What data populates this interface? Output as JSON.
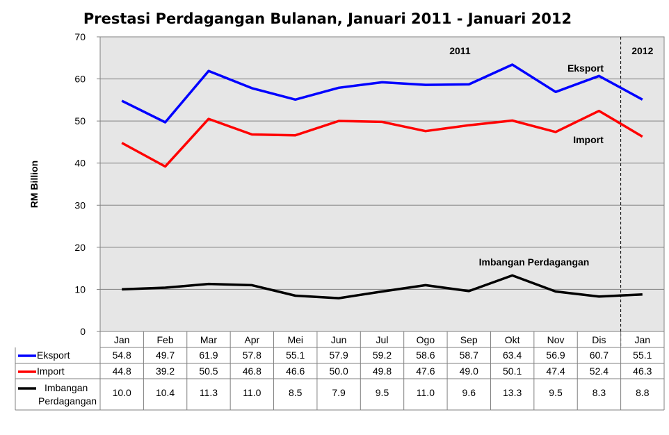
{
  "chart_data": {
    "type": "line",
    "title": "Prestasi Perdagangan Bulanan, Januari 2011 - Januari 2012",
    "ylabel": "RM Billion",
    "xlabel": "",
    "ylim": [
      0,
      70
    ],
    "yticks": [
      0,
      10,
      20,
      30,
      40,
      50,
      60,
      70
    ],
    "grid": true,
    "categories": [
      "Jan",
      "Feb",
      "Mar",
      "Apr",
      "Mei",
      "Jun",
      "Jul",
      "Ogo",
      "Sep",
      "Okt",
      "Nov",
      "Dis",
      "Jan"
    ],
    "period_labels": [
      "2011",
      "2012"
    ],
    "series": [
      {
        "key": "eksport",
        "name": "Eksport",
        "table_label": "Eksport",
        "color": "#0000ff",
        "values": [
          54.8,
          49.7,
          61.9,
          57.8,
          55.1,
          57.9,
          59.2,
          58.6,
          58.7,
          63.4,
          56.9,
          60.7,
          55.1
        ],
        "labels": [
          "54.8",
          "49.7",
          "61.9",
          "57.8",
          "55.1",
          "57.9",
          "59.2",
          "58.6",
          "58.7",
          "63.4",
          "56.9",
          "60.7",
          "55.1"
        ]
      },
      {
        "key": "import",
        "name": "Import",
        "table_label": "Import",
        "color": "#ff0000",
        "values": [
          44.8,
          39.2,
          50.5,
          46.8,
          46.6,
          50.0,
          49.8,
          47.6,
          49.0,
          50.1,
          47.4,
          52.4,
          46.3
        ],
        "labels": [
          "44.8",
          "39.2",
          "50.5",
          "46.8",
          "46.6",
          "50.0",
          "49.8",
          "47.6",
          "49.0",
          "50.1",
          "47.4",
          "52.4",
          "46.3"
        ]
      },
      {
        "key": "imbangan",
        "name": "Imbangan Perdagangan",
        "table_label": [
          "Imbangan",
          "Perdagangan"
        ],
        "color": "#000000",
        "values": [
          10.0,
          10.4,
          11.3,
          11.0,
          8.5,
          7.9,
          9.5,
          11.0,
          9.6,
          13.3,
          9.5,
          8.3,
          8.8
        ],
        "labels": [
          "10.0",
          "10.4",
          "11.3",
          "11.0",
          "8.5",
          "7.9",
          "9.5",
          "11.0",
          "9.6",
          "13.3",
          "9.5",
          "8.3",
          "8.8"
        ]
      }
    ]
  }
}
